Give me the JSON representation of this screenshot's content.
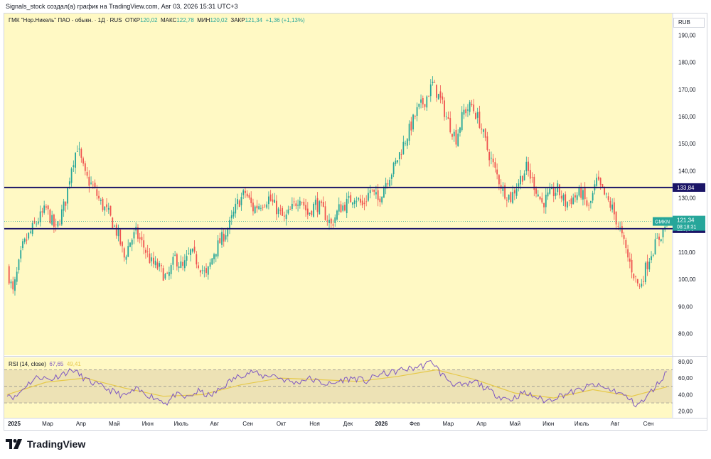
{
  "header": {
    "byline": "Signals_stock создал(а) график на TradingView.com, Авг 03, 2026 15:31 UTC+3"
  },
  "legend": {
    "symbol": "ГМК \"Нор.Никель\" ПАО - обыкн. · 1Д · RUS",
    "open_label": "ОТКР",
    "open": "120,02",
    "high_label": "МАКС",
    "high": "122,78",
    "low_label": "МИН",
    "low": "120,02",
    "close_label": "ЗАКР",
    "close": "121,34",
    "change": "+1,36 (+1,13%)"
  },
  "currency": "RUB",
  "rsi_legend": {
    "name": "RSI (14, close)",
    "rsi": "67,65",
    "ma": "49,41"
  },
  "colors": {
    "background": "#fff9c4",
    "up": "#26a69a",
    "down": "#ef5350",
    "levels": "#1a1466",
    "rsi": "#7e57c2",
    "rsi_ma": "#e6c94a",
    "rsi_band": "#ede2b5"
  },
  "footer": {
    "brand": "TradingView",
    "logo_icon": "tradingview-logo-icon"
  },
  "chart_data": {
    "type": "candlestick",
    "price_axis": {
      "ticks": [
        "190,00",
        "180,00",
        "170,00",
        "160,00",
        "150,00",
        "140,00",
        "130,00",
        "110,00",
        "100,00",
        "90,00",
        "80,00"
      ],
      "tick_values": [
        190,
        180,
        170,
        160,
        150,
        140,
        130,
        110,
        100,
        90,
        80
      ],
      "range": [
        72,
        198
      ]
    },
    "time_axis": {
      "labels": [
        "2025",
        "Мар",
        "Апр",
        "Май",
        "Июн",
        "Июль",
        "Авг",
        "Сен",
        "Окт",
        "Ноя",
        "Дек",
        "2026",
        "Фев",
        "Мар",
        "Апр",
        "Май",
        "Июн",
        "Июль",
        "Авг",
        "Сен"
      ],
      "bold": [
        "2025",
        "2026"
      ]
    },
    "horizontal_levels": [
      {
        "value": 133.84,
        "label": "133,84"
      },
      {
        "value": 118.66,
        "label": "118,66"
      }
    ],
    "last_price": {
      "symbol": "GMKN",
      "value": 121.34,
      "label": "121,34",
      "countdown": "08:18:31"
    },
    "price_path": [
      [
        0,
        104
      ],
      [
        3,
        95
      ],
      [
        8,
        112
      ],
      [
        14,
        120
      ],
      [
        20,
        126
      ],
      [
        25,
        118
      ],
      [
        30,
        129
      ],
      [
        33,
        142
      ],
      [
        36,
        149
      ],
      [
        40,
        138
      ],
      [
        44,
        134
      ],
      [
        48,
        128
      ],
      [
        52,
        124
      ],
      [
        57,
        116
      ],
      [
        60,
        108
      ],
      [
        63,
        114
      ],
      [
        66,
        117
      ],
      [
        70,
        112
      ],
      [
        74,
        106
      ],
      [
        78,
        104
      ],
      [
        82,
        100
      ],
      [
        86,
        108
      ],
      [
        90,
        104
      ],
      [
        94,
        110
      ],
      [
        98,
        106
      ],
      [
        102,
        101
      ],
      [
        106,
        110
      ],
      [
        110,
        115
      ],
      [
        114,
        120
      ],
      [
        118,
        128
      ],
      [
        122,
        132
      ],
      [
        126,
        126
      ],
      [
        130,
        128
      ],
      [
        134,
        130
      ],
      [
        138,
        126
      ],
      [
        142,
        122
      ],
      [
        146,
        126
      ],
      [
        150,
        131
      ],
      [
        154,
        124
      ],
      [
        158,
        128
      ],
      [
        162,
        125
      ],
      [
        166,
        120
      ],
      [
        170,
        126
      ],
      [
        174,
        128
      ],
      [
        178,
        131
      ],
      [
        182,
        127
      ],
      [
        186,
        133
      ],
      [
        190,
        129
      ],
      [
        194,
        136
      ],
      [
        198,
        141
      ],
      [
        202,
        148
      ],
      [
        206,
        155
      ],
      [
        210,
        162
      ],
      [
        214,
        166
      ],
      [
        218,
        172
      ],
      [
        222,
        166
      ],
      [
        226,
        158
      ],
      [
        230,
        152
      ],
      [
        234,
        162
      ],
      [
        238,
        164
      ],
      [
        242,
        158
      ],
      [
        246,
        148
      ],
      [
        250,
        140
      ],
      [
        254,
        133
      ],
      [
        258,
        130
      ],
      [
        262,
        136
      ],
      [
        266,
        141
      ],
      [
        270,
        135
      ],
      [
        274,
        128
      ],
      [
        278,
        131
      ],
      [
        282,
        133
      ],
      [
        286,
        128
      ],
      [
        290,
        130
      ],
      [
        294,
        132
      ],
      [
        298,
        126
      ],
      [
        302,
        136
      ],
      [
        306,
        131
      ],
      [
        310,
        126
      ],
      [
        314,
        118
      ],
      [
        318,
        108
      ],
      [
        322,
        100
      ],
      [
        324,
        97
      ],
      [
        327,
        104
      ],
      [
        330,
        110
      ],
      [
        333,
        114
      ],
      [
        336,
        118
      ],
      [
        338,
        121.34
      ]
    ],
    "rsi": {
      "name": "RSI (14, close)",
      "ticks": [
        "80,00",
        "60,00",
        "40,00",
        "20,00"
      ],
      "tick_values": [
        80,
        60,
        40,
        20
      ],
      "bands": [
        70,
        50,
        30
      ],
      "last": 67.65,
      "ma_last": 49.41,
      "path": [
        [
          0,
          42
        ],
        [
          4,
          36
        ],
        [
          10,
          52
        ],
        [
          16,
          62
        ],
        [
          22,
          58
        ],
        [
          28,
          65
        ],
        [
          34,
          70
        ],
        [
          38,
          62
        ],
        [
          42,
          56
        ],
        [
          48,
          50
        ],
        [
          54,
          44
        ],
        [
          60,
          38
        ],
        [
          66,
          46
        ],
        [
          70,
          42
        ],
        [
          76,
          36
        ],
        [
          82,
          30
        ],
        [
          86,
          40
        ],
        [
          92,
          36
        ],
        [
          98,
          44
        ],
        [
          104,
          38
        ],
        [
          110,
          48
        ],
        [
          114,
          56
        ],
        [
          120,
          64
        ],
        [
          126,
          68
        ],
        [
          130,
          62
        ],
        [
          136,
          64
        ],
        [
          142,
          58
        ],
        [
          148,
          54
        ],
        [
          154,
          60
        ],
        [
          160,
          55
        ],
        [
          166,
          52
        ],
        [
          172,
          58
        ],
        [
          178,
          60
        ],
        [
          184,
          56
        ],
        [
          190,
          64
        ],
        [
          196,
          66
        ],
        [
          202,
          70
        ],
        [
          208,
          72
        ],
        [
          214,
          76
        ],
        [
          218,
          80
        ],
        [
          222,
          66
        ],
        [
          228,
          54
        ],
        [
          234,
          50
        ],
        [
          240,
          56
        ],
        [
          246,
          46
        ],
        [
          252,
          38
        ],
        [
          258,
          34
        ],
        [
          264,
          42
        ],
        [
          270,
          38
        ],
        [
          276,
          32
        ],
        [
          282,
          38
        ],
        [
          288,
          42
        ],
        [
          294,
          46
        ],
        [
          300,
          52
        ],
        [
          306,
          48
        ],
        [
          312,
          44
        ],
        [
          318,
          36
        ],
        [
          322,
          28
        ],
        [
          326,
          32
        ],
        [
          330,
          44
        ],
        [
          334,
          55
        ],
        [
          338,
          67.65
        ]
      ],
      "ma_path": [
        [
          0,
          40
        ],
        [
          20,
          55
        ],
        [
          40,
          60
        ],
        [
          60,
          48
        ],
        [
          80,
          38
        ],
        [
          100,
          40
        ],
        [
          120,
          52
        ],
        [
          140,
          60
        ],
        [
          160,
          58
        ],
        [
          180,
          56
        ],
        [
          200,
          62
        ],
        [
          220,
          70
        ],
        [
          240,
          58
        ],
        [
          260,
          42
        ],
        [
          280,
          36
        ],
        [
          300,
          46
        ],
        [
          320,
          38
        ],
        [
          338,
          49.41
        ]
      ]
    }
  }
}
